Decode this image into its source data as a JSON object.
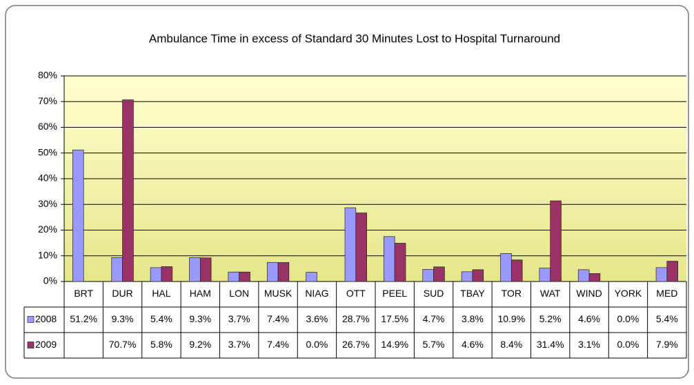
{
  "chart_data": {
    "type": "bar",
    "title": "Ambulance Time in excess of Standard 30 Minutes Lost to Hospital Turnaround",
    "categories": [
      "BRT",
      "DUR",
      "HAL",
      "HAM",
      "LON",
      "MUSK",
      "NIAG",
      "OTT",
      "PEEL",
      "SUD",
      "TBAY",
      "TOR",
      "WAT",
      "WIND",
      "YORK",
      "MED"
    ],
    "series": [
      {
        "name": "2008",
        "color": "#9999ff",
        "values": [
          51.2,
          9.3,
          5.4,
          9.3,
          3.7,
          7.4,
          3.6,
          28.7,
          17.5,
          4.7,
          3.8,
          10.9,
          5.2,
          4.6,
          0.0,
          5.4
        ],
        "value_labels": [
          "51.2%",
          "9.3%",
          "5.4%",
          "9.3%",
          "3.7%",
          "7.4%",
          "3.6%",
          "28.7%",
          "17.5%",
          "4.7%",
          "3.8%",
          "10.9%",
          "5.2%",
          "4.6%",
          "0.0%",
          "5.4%"
        ]
      },
      {
        "name": "2009",
        "color": "#993366",
        "values": [
          null,
          70.7,
          5.8,
          9.2,
          3.7,
          7.4,
          0.0,
          26.7,
          14.9,
          5.7,
          4.6,
          8.4,
          31.4,
          3.1,
          0.0,
          7.9
        ],
        "value_labels": [
          null,
          "70.7%",
          "5.8%",
          "9.2%",
          "3.7%",
          "7.4%",
          "0.0%",
          "26.7%",
          "14.9%",
          "5.7%",
          "4.6%",
          "8.4%",
          "31.4%",
          "3.1%",
          "0.0%",
          "7.9%"
        ]
      }
    ],
    "ylim": [
      0,
      80
    ],
    "yticks": [
      {
        "value": 0,
        "label": "0%"
      },
      {
        "value": 10,
        "label": "10%"
      },
      {
        "value": 20,
        "label": "20%"
      },
      {
        "value": 30,
        "label": "30%"
      },
      {
        "value": 40,
        "label": "40%"
      },
      {
        "value": 50,
        "label": "50%"
      },
      {
        "value": 60,
        "label": "60%"
      },
      {
        "value": 70,
        "label": "70%"
      },
      {
        "value": 80,
        "label": "80%"
      }
    ],
    "grid": true
  }
}
